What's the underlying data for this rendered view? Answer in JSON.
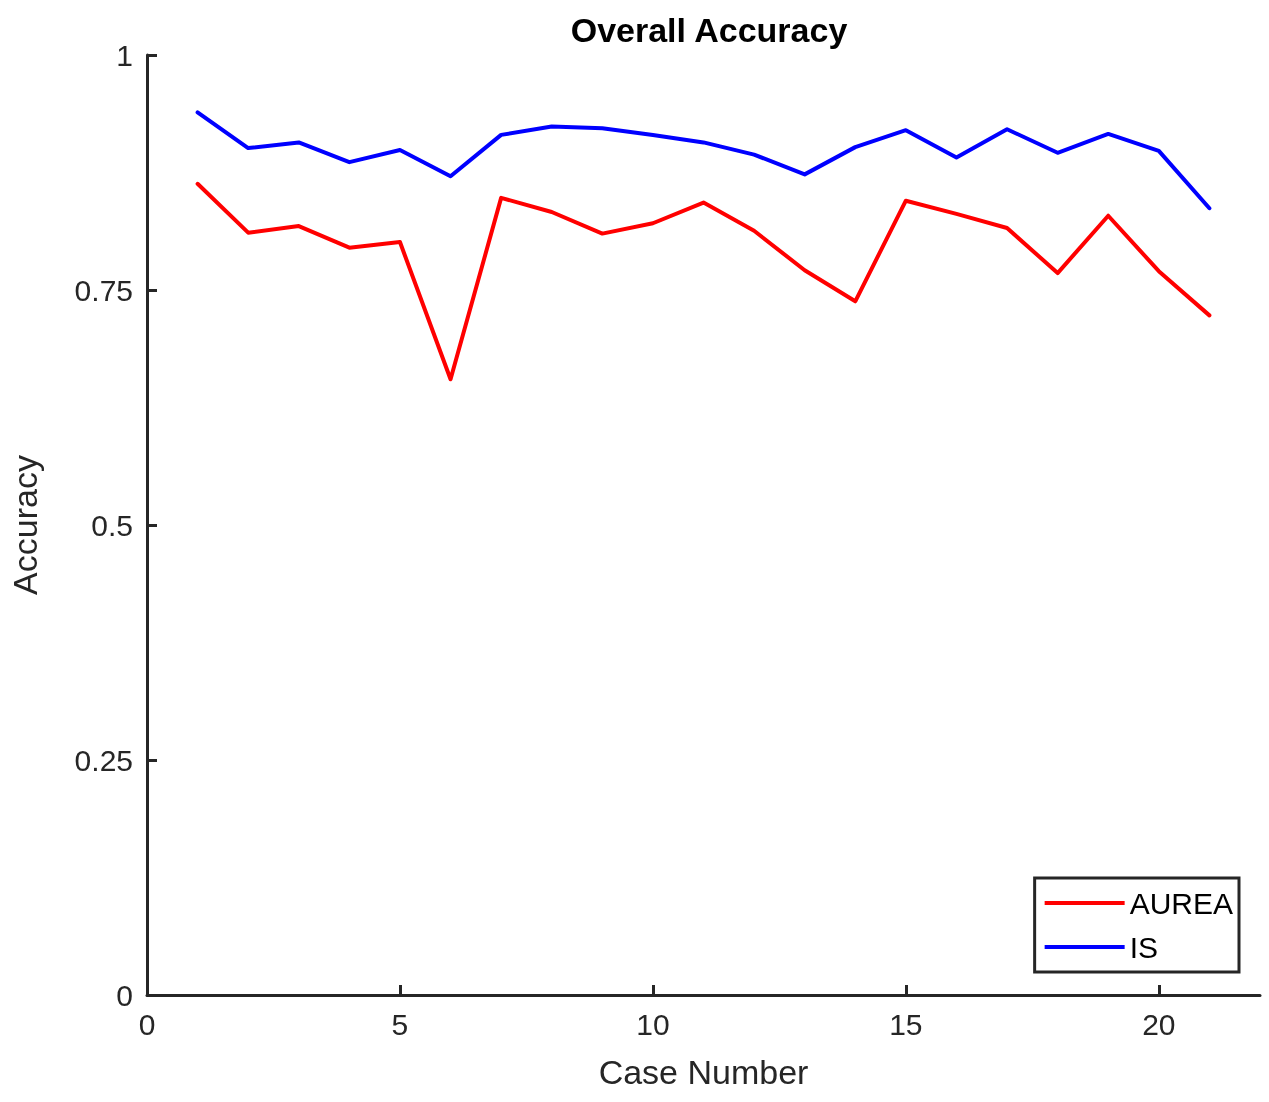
{
  "chart_data": {
    "type": "line",
    "title": "Overall Accuracy",
    "xlabel": "Case Number",
    "ylabel": "Accuracy",
    "x": [
      1,
      2,
      3,
      4,
      5,
      6,
      7,
      8,
      9,
      10,
      11,
      12,
      13,
      14,
      15,
      16,
      17,
      18,
      19,
      20,
      21
    ],
    "series": [
      {
        "name": "AUREA",
        "color": "#ff0000",
        "values": [
          0.863,
          0.811,
          0.818,
          0.795,
          0.801,
          0.655,
          0.848,
          0.833,
          0.81,
          0.821,
          0.843,
          0.813,
          0.771,
          0.738,
          0.845,
          0.831,
          0.816,
          0.768,
          0.829,
          0.77,
          0.723
        ]
      },
      {
        "name": "IS",
        "color": "#0000ff",
        "values": [
          0.939,
          0.901,
          0.907,
          0.886,
          0.899,
          0.871,
          0.915,
          0.924,
          0.922,
          0.915,
          0.907,
          0.894,
          0.873,
          0.902,
          0.92,
          0.891,
          0.921,
          0.896,
          0.916,
          0.898,
          0.837
        ]
      }
    ],
    "xlim": [
      0,
      22
    ],
    "xticks": [
      0,
      5,
      10,
      15,
      20
    ],
    "ylim": [
      0,
      1
    ],
    "yticks": [
      0,
      {
        "value": 0.25,
        "label": "0.25"
      },
      {
        "value": 0.5,
        "label": "0.5"
      },
      {
        "value": 0.75,
        "label": "0.75"
      },
      1
    ],
    "grid": false,
    "legend": "bottom right",
    "marker": "none",
    "line_style": "solid"
  }
}
